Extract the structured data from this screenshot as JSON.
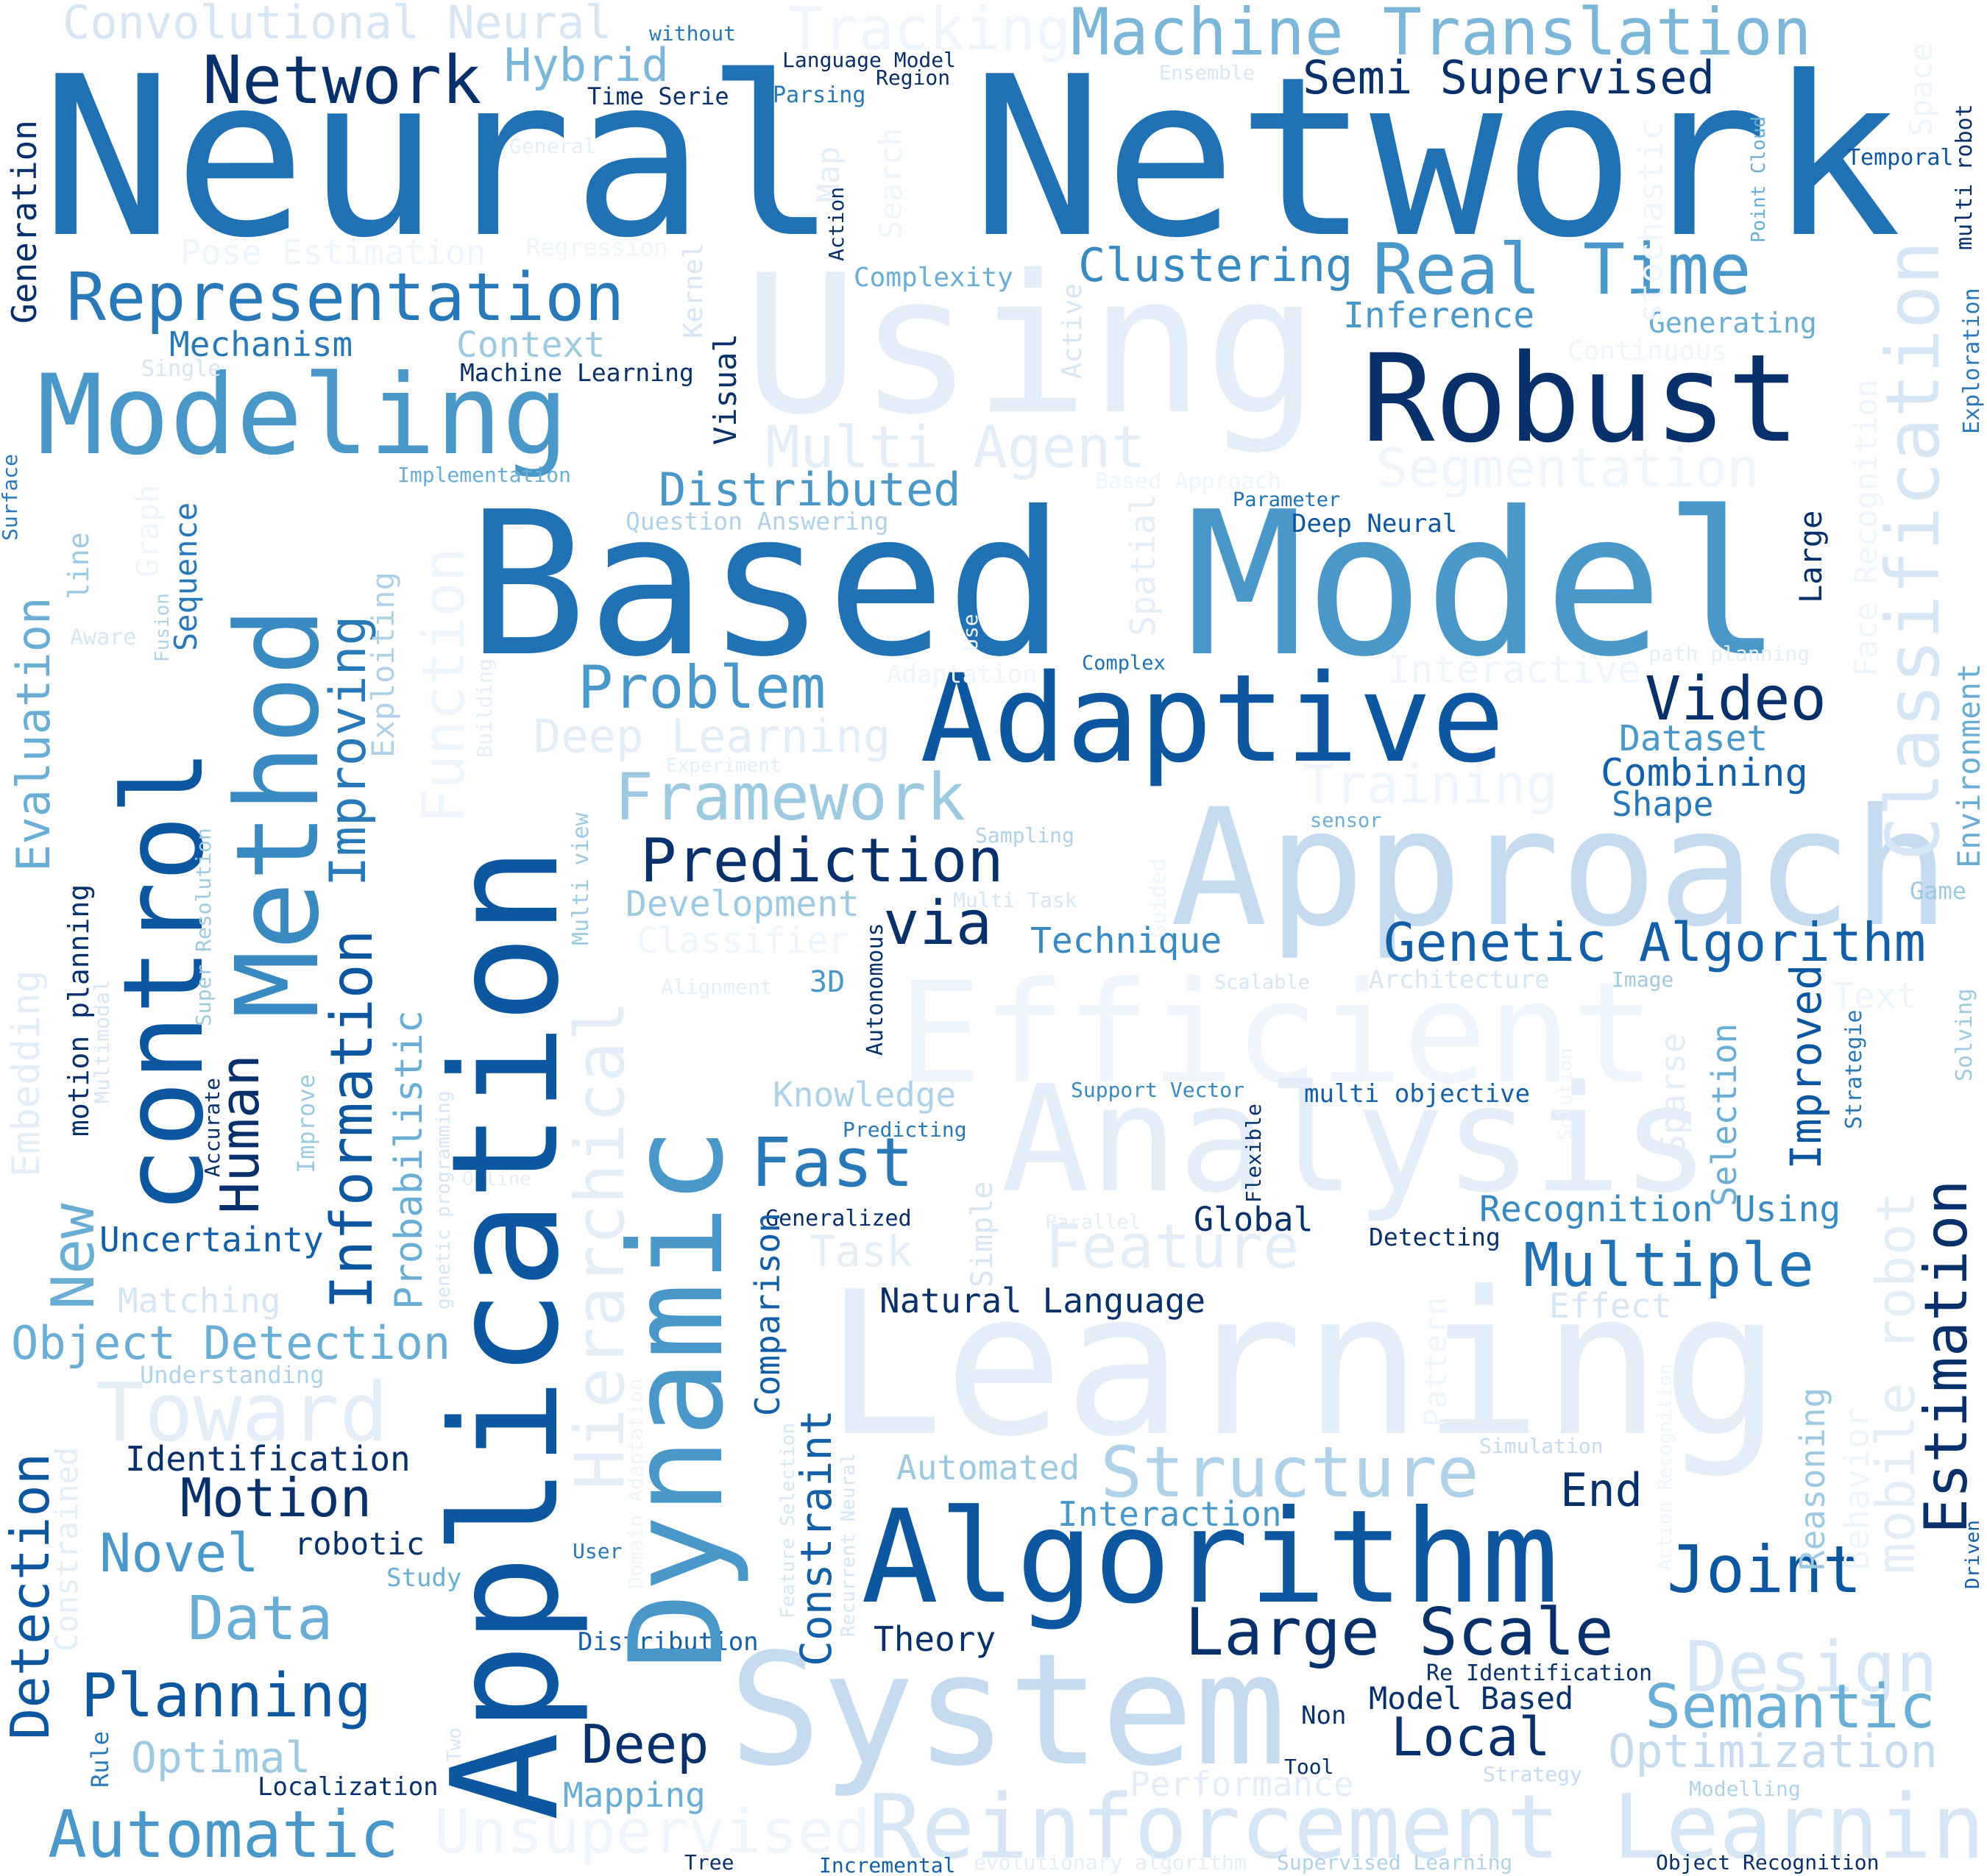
{
  "words": [
    {
      "text": "Neural Network",
      "color": "#2171b5"
    },
    {
      "text": "Using",
      "color": "#e3eef9"
    },
    {
      "text": "Based",
      "color": "#2171b5"
    },
    {
      "text": "Model",
      "color": "#4a98c9"
    },
    {
      "text": "Approach",
      "color": "#c6dbef"
    },
    {
      "text": "Learning",
      "color": "#e3eef9"
    },
    {
      "text": "System",
      "color": "#c6dbef"
    },
    {
      "text": "Efficient",
      "color": "#eef5fc"
    },
    {
      "text": "Analysis",
      "color": "#e3eef9"
    },
    {
      "text": "Algorithm",
      "color": "#0d56a0"
    },
    {
      "text": "Adaptive",
      "color": "#0d56a0"
    },
    {
      "text": "Robust",
      "color": "#08306b"
    },
    {
      "text": "Application",
      "color": "#0d56a0"
    },
    {
      "text": "Dynamic",
      "color": "#4a98c9"
    },
    {
      "text": "control",
      "color": "#0d56a0"
    },
    {
      "text": "Method",
      "color": "#3a8ac2"
    },
    {
      "text": "Modeling",
      "color": "#4a98c9"
    },
    {
      "text": "Representation",
      "color": "#2979b9"
    },
    {
      "text": "Machine Translation",
      "color": "#7cb7da"
    },
    {
      "text": "Reinforcement Learning",
      "color": "#d6e6f4"
    },
    {
      "text": "Real Time",
      "color": "#4a98c9"
    },
    {
      "text": "Network",
      "color": "#08306b"
    },
    {
      "text": "Convolutional Neural",
      "color": "#d6e6f4"
    },
    {
      "text": "Tracking",
      "color": "#eef5fc"
    },
    {
      "text": "Hybrid",
      "color": "#7cb7da"
    },
    {
      "text": "Semi Supervised",
      "color": "#08306b"
    },
    {
      "text": "Clustering",
      "color": "#3a8ac2"
    },
    {
      "text": "Multi Agent",
      "color": "#e3eef9"
    },
    {
      "text": "Segmentation",
      "color": "#eef5fc"
    },
    {
      "text": "Distributed",
      "color": "#4a98c9"
    },
    {
      "text": "Problem",
      "color": "#4a98c9"
    },
    {
      "text": "Framework",
      "color": "#9ecae1"
    },
    {
      "text": "Prediction",
      "color": "#08306b"
    },
    {
      "text": "Video",
      "color": "#08306b"
    },
    {
      "text": "Genetic Algorithm",
      "color": "#1460a8"
    },
    {
      "text": "Multiple",
      "color": "#2171b5"
    },
    {
      "text": "Structure",
      "color": "#b0d2e8"
    },
    {
      "text": "Large Scale",
      "color": "#08306b"
    },
    {
      "text": "Joint",
      "color": "#0d56a0"
    },
    {
      "text": "Design",
      "color": "#d6e6f4"
    },
    {
      "text": "Semantic",
      "color": "#6aaed6"
    },
    {
      "text": "Optimization",
      "color": "#c6dbef"
    },
    {
      "text": "Local",
      "color": "#08306b"
    },
    {
      "text": "Deep",
      "color": "#08306b"
    },
    {
      "text": "Planning",
      "color": "#0d56a0"
    },
    {
      "text": "Automatic",
      "color": "#4a98c9"
    },
    {
      "text": "Unsupervised",
      "color": "#eef5fc"
    },
    {
      "text": "Data",
      "color": "#6aaed6"
    },
    {
      "text": "Novel",
      "color": "#4a98c9"
    },
    {
      "text": "Motion",
      "color": "#08306b"
    },
    {
      "text": "Toward",
      "color": "#e3eef9"
    },
    {
      "text": "Object Detection",
      "color": "#6aaed6"
    },
    {
      "text": "Fast",
      "color": "#2979b9"
    },
    {
      "text": "Feature",
      "color": "#e3eef9"
    },
    {
      "text": "Training",
      "color": "#eef5fc"
    },
    {
      "text": "Deep Learning",
      "color": "#e3eef9"
    },
    {
      "text": "via",
      "color": "#08306b"
    },
    {
      "text": "Technique",
      "color": "#3a8ac2"
    },
    {
      "text": "Development",
      "color": "#9ecae1"
    },
    {
      "text": "Classifier",
      "color": "#eef5fc"
    },
    {
      "text": "Interactive",
      "color": "#eef5fc"
    },
    {
      "text": "Dataset",
      "color": "#4a98c9"
    },
    {
      "text": "Combining",
      "color": "#1460a8"
    },
    {
      "text": "Shape",
      "color": "#2979b9"
    },
    {
      "text": "Inference",
      "color": "#4a98c9"
    },
    {
      "text": "Generating",
      "color": "#6aaed6"
    },
    {
      "text": "Continuous",
      "color": "#eef5fc"
    },
    {
      "text": "Mechanism",
      "color": "#2979b9"
    },
    {
      "text": "Context",
      "color": "#9ecae1"
    },
    {
      "text": "Machine Learning",
      "color": "#08306b"
    },
    {
      "text": "Pose Estimation",
      "color": "#eef5fc"
    },
    {
      "text": "Regression",
      "color": "#eef5fc"
    },
    {
      "text": "Complexity",
      "color": "#6aaed6"
    },
    {
      "text": "Time Serie",
      "color": "#08306b"
    },
    {
      "text": "Parsing",
      "color": "#2979b9"
    },
    {
      "text": "Language Model",
      "color": "#08306b"
    },
    {
      "text": "Region",
      "color": "#08306b"
    },
    {
      "text": "without",
      "color": "#2979b9"
    },
    {
      "text": "Ensemble",
      "color": "#d6e6f4"
    },
    {
      "text": "Temporal",
      "color": "#0d56a0"
    },
    {
      "text": "General",
      "color": "#e3eef9"
    },
    {
      "text": "Single",
      "color": "#d6e6f4"
    },
    {
      "text": "Implementation",
      "color": "#6aaed6"
    },
    {
      "text": "Question Answering",
      "color": "#b0d2e8"
    },
    {
      "text": "Parameter",
      "color": "#2171b5"
    },
    {
      "text": "Deep Neural",
      "color": "#0d56a0"
    },
    {
      "text": "Based Approach",
      "color": "#eef5fc"
    },
    {
      "text": "Complex",
      "color": "#2171b5"
    },
    {
      "text": "path planning",
      "color": "#e3eef9"
    },
    {
      "text": "Experiment",
      "color": "#e3eef9"
    },
    {
      "text": "Sampling",
      "color": "#b0d2e8"
    },
    {
      "text": "Multi Task",
      "color": "#d6e6f4"
    },
    {
      "text": "sensor",
      "color": "#6aaed6"
    },
    {
      "text": "Game",
      "color": "#9ecae1"
    },
    {
      "text": "Alignment",
      "color": "#e3eef9"
    },
    {
      "text": "3D",
      "color": "#4a98c9"
    },
    {
      "text": "Scalable",
      "color": "#d6e6f4"
    },
    {
      "text": "Architecture",
      "color": "#d6e6f4"
    },
    {
      "text": "Image",
      "color": "#9ecae1"
    },
    {
      "text": "Text",
      "color": "#eef5fc"
    },
    {
      "text": "Knowledge",
      "color": "#b0d2e8"
    },
    {
      "text": "Support Vector",
      "color": "#3a8ac2"
    },
    {
      "text": "multi objective",
      "color": "#1460a8"
    },
    {
      "text": "Predicting",
      "color": "#2979b9"
    },
    {
      "text": "Generalized",
      "color": "#08306b"
    },
    {
      "text": "Task",
      "color": "#e3eef9"
    },
    {
      "text": "Parallel",
      "color": "#e3eef9"
    },
    {
      "text": "Global",
      "color": "#08306b"
    },
    {
      "text": "Detecting",
      "color": "#08306b"
    },
    {
      "text": "Recognition Using",
      "color": "#3a8ac2"
    },
    {
      "text": "Natural Language",
      "color": "#08306b"
    },
    {
      "text": "Effect",
      "color": "#d6e6f4"
    },
    {
      "text": "Uncertainty",
      "color": "#1460a8"
    },
    {
      "text": "Matching",
      "color": "#d6e6f4"
    },
    {
      "text": "Understanding",
      "color": "#b0d2e8"
    },
    {
      "text": "Identification",
      "color": "#08306b"
    },
    {
      "text": "robotic",
      "color": "#08306b"
    },
    {
      "text": "Study",
      "color": "#6aaed6"
    },
    {
      "text": "User",
      "color": "#2979b9"
    },
    {
      "text": "Distribution",
      "color": "#1460a8"
    },
    {
      "text": "Theory",
      "color": "#08306b"
    },
    {
      "text": "Automated",
      "color": "#9ecae1"
    },
    {
      "text": "Interaction",
      "color": "#4a98c9"
    },
    {
      "text": "End",
      "color": "#08306b"
    },
    {
      "text": "Simulation",
      "color": "#c6dbef"
    },
    {
      "text": "Re Identification",
      "color": "#08306b"
    },
    {
      "text": "Model Based",
      "color": "#08306b"
    },
    {
      "text": "Non",
      "color": "#08306b"
    },
    {
      "text": "Tool",
      "color": "#08306b"
    },
    {
      "text": "Strategy",
      "color": "#c6dbef"
    },
    {
      "text": "Performance",
      "color": "#e3eef9"
    },
    {
      "text": "Modelling",
      "color": "#b0d2e8"
    },
    {
      "text": "Mapping",
      "color": "#6aaed6"
    },
    {
      "text": "Optimal",
      "color": "#9ecae1"
    },
    {
      "text": "Localization",
      "color": "#08306b"
    },
    {
      "text": "Tree",
      "color": "#08306b"
    },
    {
      "text": "Incremental",
      "color": "#1460a8"
    },
    {
      "text": "evolutionary algorithm",
      "color": "#e3eef9"
    },
    {
      "text": "Supervised Learning",
      "color": "#b0d2e8"
    },
    {
      "text": "Object Recognition",
      "color": "#08306b"
    },
    {
      "text": "Generation",
      "color": "#08306b",
      "v": true
    },
    {
      "text": "Surface",
      "color": "#2979b9",
      "v": true
    },
    {
      "text": "Evaluation",
      "color": "#6aaed6",
      "v": true
    },
    {
      "text": "Embedding",
      "color": "#e3eef9",
      "v": true
    },
    {
      "text": "New",
      "color": "#6aaed6",
      "v": true
    },
    {
      "text": "Detection",
      "color": "#0d56a0",
      "v": true
    },
    {
      "text": "Constrained",
      "color": "#e3eef9",
      "v": true
    },
    {
      "text": "Rule",
      "color": "#2979b9",
      "v": true
    },
    {
      "text": "line",
      "color": "#9ecae1",
      "v": true
    },
    {
      "text": "Aware",
      "color": "#d6e6f4",
      "v": false
    },
    {
      "text": "motion planning",
      "color": "#08306b",
      "v": true
    },
    {
      "text": "Multimodal",
      "color": "#d6e6f4",
      "v": true
    },
    {
      "text": "Graph",
      "color": "#eef5fc",
      "v": true
    },
    {
      "text": "Fusion",
      "color": "#b0d2e8",
      "v": true
    },
    {
      "text": "Sequence",
      "color": "#2979b9",
      "v": true
    },
    {
      "text": "Super Resolution",
      "color": "#9ecae1",
      "v": true
    },
    {
      "text": "Accurate",
      "color": "#08306b",
      "v": true
    },
    {
      "text": "Human",
      "color": "#08306b",
      "v": true
    },
    {
      "text": "Improve",
      "color": "#9ecae1",
      "v": true
    },
    {
      "text": "Improving",
      "color": "#2979b9",
      "v": true
    },
    {
      "text": "Information",
      "color": "#0d56a0",
      "v": true
    },
    {
      "text": "Exploiting",
      "color": "#b0d2e8",
      "v": true
    },
    {
      "text": "Probabilistic",
      "color": "#6aaed6",
      "v": true
    },
    {
      "text": "genetic programming",
      "color": "#d6e6f4",
      "v": true
    },
    {
      "text": "Two",
      "color": "#d6e6f4",
      "v": false
    },
    {
      "text": "Function",
      "color": "#eef5fc",
      "v": true
    },
    {
      "text": "Online",
      "color": "#e3eef9",
      "v": true
    },
    {
      "text": "Building",
      "color": "#e3eef9",
      "v": true
    },
    {
      "text": "Hierarchical",
      "color": "#e3eef9",
      "v": true
    },
    {
      "text": "Multi view",
      "color": "#9ecae1",
      "v": true
    },
    {
      "text": "Domain Adaptation",
      "color": "#eef5fc",
      "v": true
    },
    {
      "text": "Visual",
      "color": "#08306b",
      "v": true
    },
    {
      "text": "Kernel",
      "color": "#d6e6f4",
      "v": true
    },
    {
      "text": "Map",
      "color": "#e3eef9",
      "v": true
    },
    {
      "text": "Search",
      "color": "#eef5fc",
      "v": true
    },
    {
      "text": "Action",
      "color": "#08306b",
      "v": true
    },
    {
      "text": "Active",
      "color": "#d6e6f4",
      "v": true
    },
    {
      "text": "Adaptation",
      "color": "#eef5fc",
      "v": true
    },
    {
      "text": "Use",
      "color": "#eef5fc",
      "v": false
    },
    {
      "text": "Spatial",
      "color": "#e3eef9",
      "v": true
    },
    {
      "text": "Guided",
      "color": "#eef5fc",
      "v": true
    },
    {
      "text": "Autonomous",
      "color": "#08306b",
      "v": true
    },
    {
      "text": "Comparison",
      "color": "#1460a8",
      "v": true
    },
    {
      "text": "Constraint",
      "color": "#1460a8",
      "v": true
    },
    {
      "text": "Feature Selection",
      "color": "#d6e6f4",
      "v": true
    },
    {
      "text": "Recurrent Neural",
      "color": "#d6e6f4",
      "v": true
    },
    {
      "text": "Simple",
      "color": "#d6e6f4",
      "v": true
    },
    {
      "text": "Flexible",
      "color": "#08306b",
      "v": true
    },
    {
      "text": "Pattern",
      "color": "#eef5fc",
      "v": true
    },
    {
      "text": "Solution",
      "color": "#eef5fc",
      "v": true
    },
    {
      "text": "Sparse",
      "color": "#e3eef9",
      "v": true
    },
    {
      "text": "Selection",
      "color": "#6aaed6",
      "v": true
    },
    {
      "text": "Improved",
      "color": "#0d56a0",
      "v": true
    },
    {
      "text": "Reasoning",
      "color": "#9ecae1",
      "v": true
    },
    {
      "text": "Behavior",
      "color": "#eef5fc",
      "v": true
    },
    {
      "text": "Action Recognition",
      "color": "#eef5fc",
      "v": true
    },
    {
      "text": "Large",
      "color": "#08306b",
      "v": true
    },
    {
      "text": "Strategie",
      "color": "#2979b9",
      "v": true
    },
    {
      "text": "mobile robot",
      "color": "#e3eef9",
      "v": true
    },
    {
      "text": "Estimation",
      "color": "#08306b",
      "v": true
    },
    {
      "text": "Solving",
      "color": "#9ecae1",
      "v": true
    },
    {
      "text": "Driven",
      "color": "#1460a8",
      "v": true
    },
    {
      "text": "Face Recognition",
      "color": "#eef5fc",
      "v": true
    },
    {
      "text": "Classification",
      "color": "#d6e6f4",
      "v": true
    },
    {
      "text": "Environment",
      "color": "#6aaed6",
      "v": true
    },
    {
      "text": "Exploration",
      "color": "#2979b9",
      "v": true
    },
    {
      "text": "Space",
      "color": "#eef5fc",
      "v": true
    },
    {
      "text": "multi robot",
      "color": "#08306b",
      "v": true
    },
    {
      "text": "Point Cloud",
      "color": "#6aaed6",
      "v": true
    },
    {
      "text": "stochastic",
      "color": "#eef5fc",
      "v": true
    }
  ]
}
